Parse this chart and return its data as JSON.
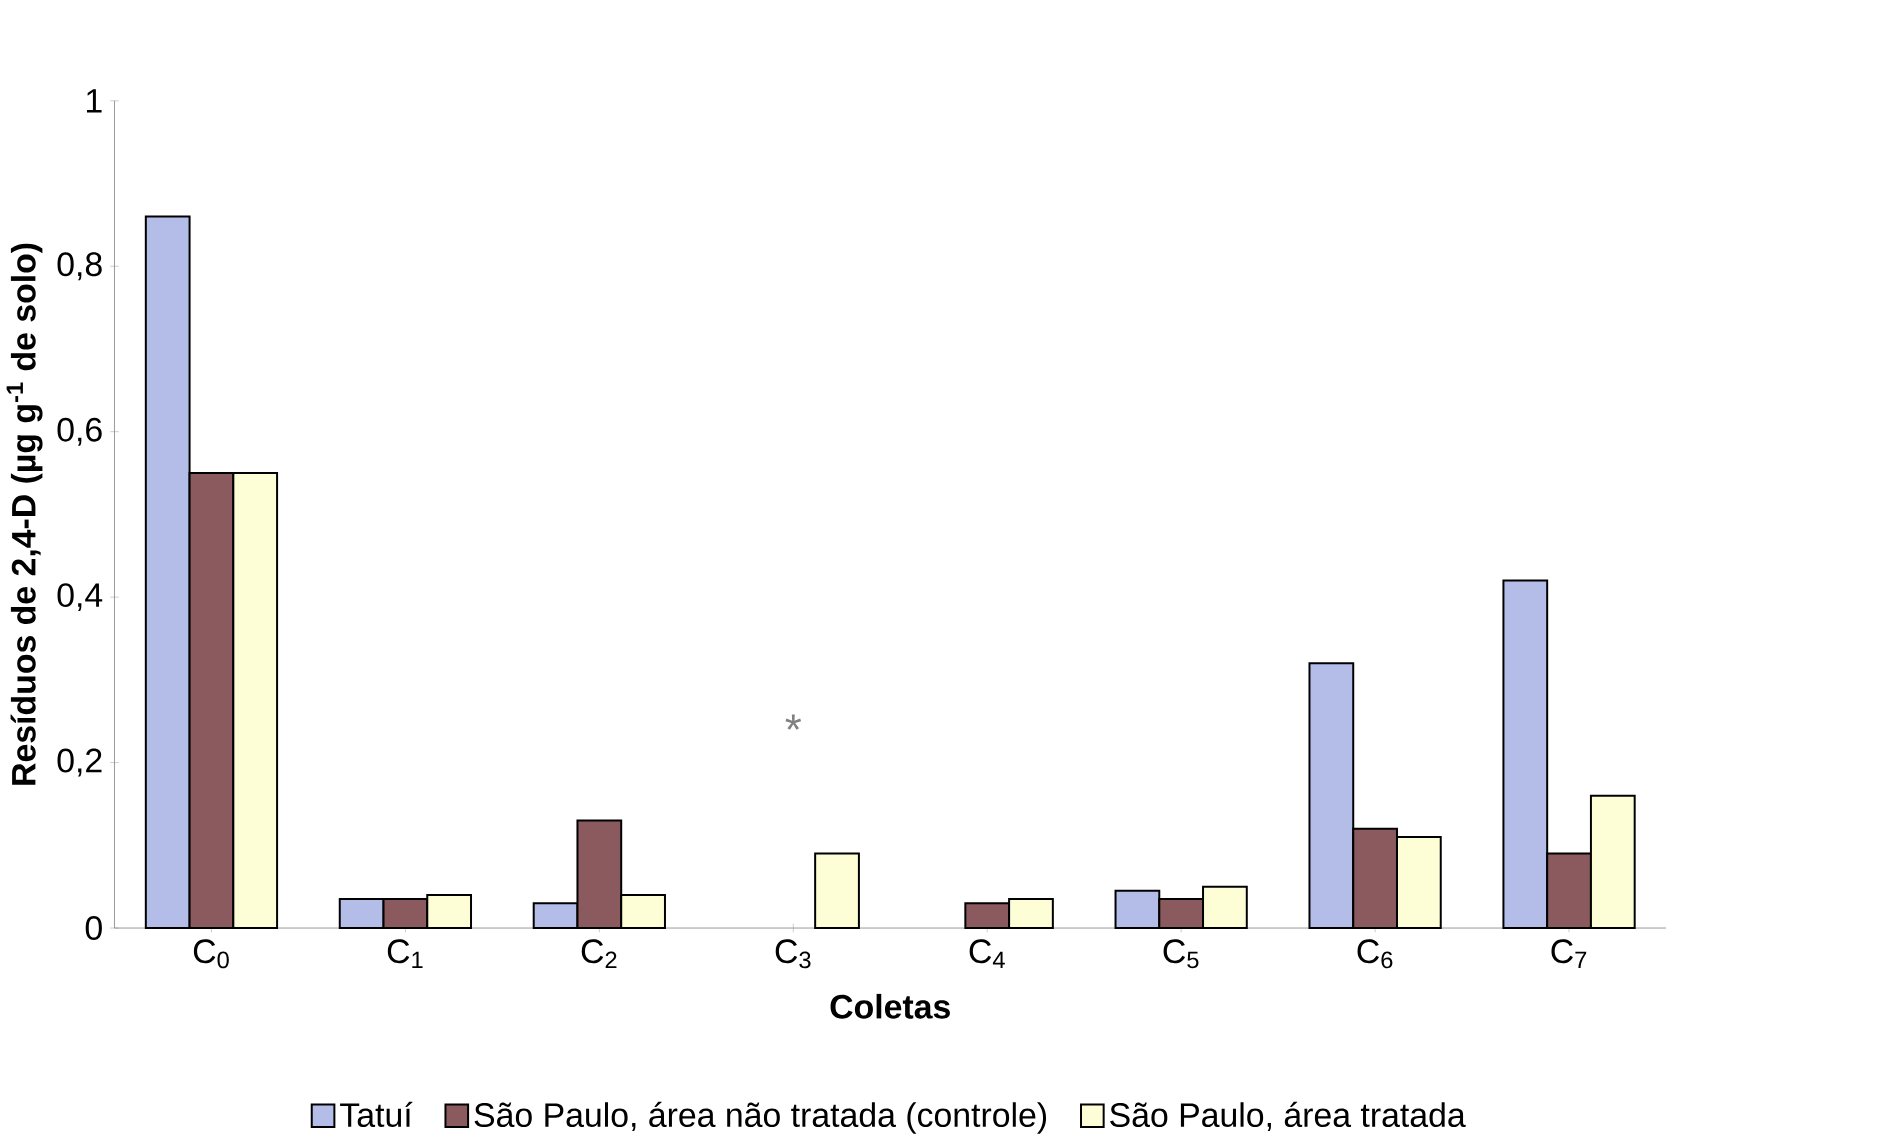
{
  "chart_data": {
    "type": "bar",
    "xlabel": "Coletas",
    "ylabel": "Resíduos de 2,4-D (µg g$^{-1}$ de solo)",
    "categories": [
      "C$_{0}$",
      "C$_{1}$",
      "C$_{2}$",
      "C$_{3}$",
      "C$_{4}$",
      "C$_{5}$",
      "C$_{6}$",
      "C$_{7}$"
    ],
    "series": [
      {
        "name": "Tatuí",
        "color": "#b4bde8",
        "values": [
          0.86,
          0.035,
          0.03,
          null,
          null,
          0.045,
          0.32,
          0.42
        ]
      },
      {
        "name": "São Paulo, área não tratada (controle)",
        "color": "#8a5a5e",
        "values": [
          0.55,
          0.035,
          0.13,
          null,
          0.03,
          0.035,
          0.12,
          0.09
        ]
      },
      {
        "name": "São Paulo, área tratada",
        "color": "#fdfdd6",
        "values": [
          0.55,
          0.04,
          0.04,
          0.09,
          0.035,
          0.05,
          0.11,
          0.16
        ]
      }
    ],
    "ylim": [
      0,
      1
    ],
    "yticks": [
      0,
      {
        "value": 0.2,
        "label": "0,2"
      },
      {
        "value": 0.4,
        "label": "0,4"
      },
      {
        "value": 0.6,
        "label": "0,6"
      },
      {
        "value": 0.8,
        "label": "0,8"
      },
      1
    ],
    "annotations": [
      "*"
    ],
    "legend": "bottom",
    "grid": false
  }
}
